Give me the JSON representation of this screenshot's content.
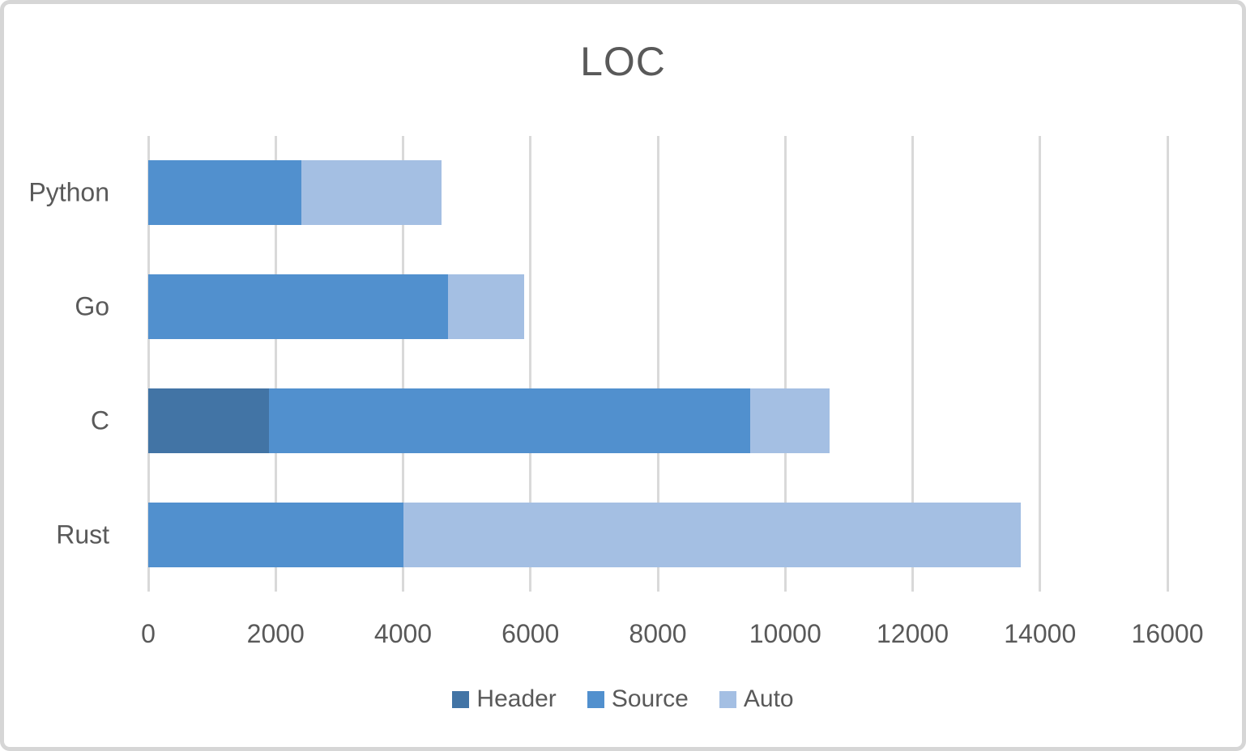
{
  "chart_data": {
    "type": "bar",
    "orientation": "horizontal",
    "stacked": true,
    "title": "LOC",
    "categories": [
      "Python",
      "Go",
      "C",
      "Rust"
    ],
    "series": [
      {
        "name": "Header",
        "color": "#4274A5",
        "values": [
          0,
          0,
          1900,
          0
        ]
      },
      {
        "name": "Source",
        "color": "#5190CE",
        "values": [
          2400,
          4700,
          7550,
          4000
        ]
      },
      {
        "name": "Auto",
        "color": "#A4BFE3",
        "values": [
          2200,
          1200,
          1250,
          9700
        ]
      }
    ],
    "totals": [
      4600,
      5900,
      10700,
      13700
    ],
    "x_axis": {
      "min": 0,
      "max": 16000,
      "tick_interval": 2000,
      "tick_labels": [
        "0",
        "2000",
        "4000",
        "6000",
        "8000",
        "10000",
        "12000",
        "14000",
        "16000"
      ]
    },
    "legend": {
      "position": "bottom",
      "entries": [
        "Header",
        "Source",
        "Auto"
      ]
    },
    "grid": "vertical-only",
    "colors": {
      "gridline": "#D9D9D9",
      "text": "#595959",
      "border": "#D6D6D6",
      "background": "#FFFFFF"
    }
  }
}
